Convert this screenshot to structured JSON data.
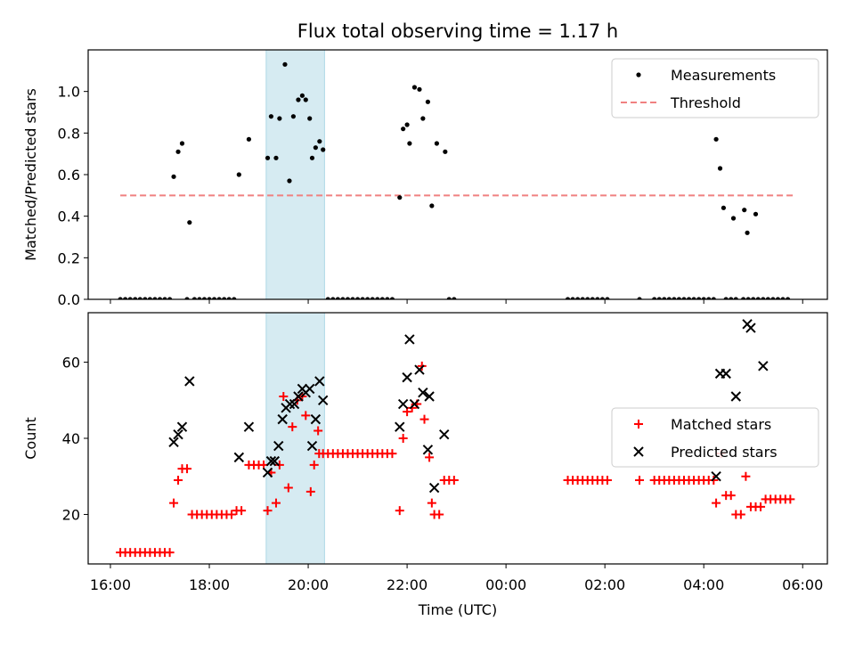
{
  "title": "Flux total observing time = 1.17 h",
  "colors": {
    "measure": "#000000",
    "threshold": "#f08080",
    "matched": "#ff0000",
    "predicted": "#000000",
    "shade": "#add8e6"
  },
  "chart_data": [
    {
      "type": "scatter",
      "ylabel": "Matched/Predicted stars",
      "xlim": [
        15.55,
        30.5
      ],
      "ylim": [
        0,
        1.2
      ],
      "yticks": [
        0.0,
        0.2,
        0.4,
        0.6,
        0.8,
        1.0
      ],
      "ytick_labels": [
        "0.0",
        "0.2",
        "0.4",
        "0.6",
        "0.8",
        "1.0"
      ],
      "shaded_span": [
        19.15,
        20.33
      ],
      "legend": {
        "position": "top-right",
        "entries": [
          "Measurements",
          "Threshold"
        ]
      },
      "threshold": {
        "name": "Threshold",
        "value": 0.5,
        "x": [
          16.2,
          29.8
        ]
      },
      "series": [
        {
          "name": "Measurements",
          "marker": "dot",
          "points": [
            [
              16.2,
              0
            ],
            [
              16.3,
              0
            ],
            [
              16.4,
              0
            ],
            [
              16.5,
              0
            ],
            [
              16.6,
              0
            ],
            [
              16.7,
              0
            ],
            [
              16.8,
              0
            ],
            [
              16.9,
              0
            ],
            [
              17.0,
              0
            ],
            [
              17.1,
              0
            ],
            [
              17.2,
              0
            ],
            [
              17.28,
              0.59
            ],
            [
              17.37,
              0.71
            ],
            [
              17.45,
              0.75
            ],
            [
              17.6,
              0.37
            ],
            [
              17.55,
              0
            ],
            [
              17.7,
              0
            ],
            [
              17.8,
              0
            ],
            [
              17.9,
              0
            ],
            [
              18.0,
              0
            ],
            [
              18.1,
              0
            ],
            [
              18.2,
              0
            ],
            [
              18.3,
              0
            ],
            [
              18.4,
              0
            ],
            [
              18.5,
              0
            ],
            [
              18.6,
              0.6
            ],
            [
              18.8,
              0.77
            ],
            [
              19.18,
              0.68
            ],
            [
              19.25,
              0.88
            ],
            [
              19.35,
              0.68
            ],
            [
              19.42,
              0.87
            ],
            [
              19.53,
              1.13
            ],
            [
              19.62,
              0.57
            ],
            [
              19.7,
              0.88
            ],
            [
              19.8,
              0.96
            ],
            [
              19.88,
              0.98
            ],
            [
              19.95,
              0.96
            ],
            [
              20.03,
              0.87
            ],
            [
              20.08,
              0.68
            ],
            [
              20.15,
              0.73
            ],
            [
              20.23,
              0.76
            ],
            [
              20.3,
              0.72
            ],
            [
              20.4,
              0
            ],
            [
              20.5,
              0
            ],
            [
              20.6,
              0
            ],
            [
              20.7,
              0
            ],
            [
              20.8,
              0
            ],
            [
              20.9,
              0
            ],
            [
              21.0,
              0
            ],
            [
              21.1,
              0
            ],
            [
              21.2,
              0
            ],
            [
              21.3,
              0
            ],
            [
              21.4,
              0
            ],
            [
              21.5,
              0
            ],
            [
              21.6,
              0
            ],
            [
              21.7,
              0
            ],
            [
              21.85,
              0.49
            ],
            [
              21.92,
              0.82
            ],
            [
              22.0,
              0.84
            ],
            [
              22.05,
              0.75
            ],
            [
              22.15,
              1.02
            ],
            [
              22.25,
              1.01
            ],
            [
              22.32,
              0.87
            ],
            [
              22.42,
              0.95
            ],
            [
              22.5,
              0.45
            ],
            [
              22.6,
              0.75
            ],
            [
              22.77,
              0.71
            ],
            [
              22.85,
              0
            ],
            [
              22.95,
              0
            ],
            [
              25.25,
              0
            ],
            [
              25.35,
              0
            ],
            [
              25.45,
              0
            ],
            [
              25.55,
              0
            ],
            [
              25.65,
              0
            ],
            [
              25.75,
              0
            ],
            [
              25.85,
              0
            ],
            [
              25.95,
              0
            ],
            [
              26.05,
              0
            ],
            [
              26.7,
              0
            ],
            [
              27.0,
              0
            ],
            [
              27.1,
              0
            ],
            [
              27.2,
              0
            ],
            [
              27.3,
              0
            ],
            [
              27.4,
              0
            ],
            [
              27.5,
              0
            ],
            [
              27.6,
              0
            ],
            [
              27.7,
              0
            ],
            [
              27.8,
              0
            ],
            [
              27.9,
              0
            ],
            [
              28.0,
              0
            ],
            [
              28.1,
              0
            ],
            [
              28.2,
              0
            ],
            [
              28.25,
              0.77
            ],
            [
              28.33,
              0.63
            ],
            [
              28.4,
              0.44
            ],
            [
              28.6,
              0.39
            ],
            [
              28.82,
              0.43
            ],
            [
              28.88,
              0.32
            ],
            [
              29.05,
              0.41
            ],
            [
              28.45,
              0
            ],
            [
              28.55,
              0
            ],
            [
              28.65,
              0
            ],
            [
              28.8,
              0
            ],
            [
              28.9,
              0
            ],
            [
              29.0,
              0
            ],
            [
              29.1,
              0
            ],
            [
              29.2,
              0
            ],
            [
              29.3,
              0
            ],
            [
              29.4,
              0
            ],
            [
              29.5,
              0
            ],
            [
              29.6,
              0
            ],
            [
              29.7,
              0
            ]
          ]
        }
      ]
    },
    {
      "type": "scatter",
      "ylabel": "Count",
      "xlabel": "Time (UTC)",
      "xlim": [
        15.55,
        30.5
      ],
      "ylim": [
        7,
        73
      ],
      "yticks": [
        20,
        40,
        60
      ],
      "ytick_labels": [
        "20",
        "40",
        "60"
      ],
      "xticks": [
        16,
        18,
        20,
        22,
        24,
        26,
        28,
        30
      ],
      "xtick_labels": [
        "16:00",
        "18:00",
        "20:00",
        "22:00",
        "00:00",
        "02:00",
        "04:00",
        "06:00"
      ],
      "shaded_span": [
        19.15,
        20.33
      ],
      "legend": {
        "position": "center-right",
        "entries": [
          "Matched stars",
          "Predicted stars"
        ]
      },
      "series": [
        {
          "name": "Matched stars",
          "marker": "plus",
          "points": [
            [
              16.2,
              10
            ],
            [
              16.3,
              10
            ],
            [
              16.4,
              10
            ],
            [
              16.5,
              10
            ],
            [
              16.6,
              10
            ],
            [
              16.7,
              10
            ],
            [
              16.8,
              10
            ],
            [
              16.9,
              10
            ],
            [
              17.0,
              10
            ],
            [
              17.1,
              10
            ],
            [
              17.2,
              10
            ],
            [
              17.28,
              23
            ],
            [
              17.37,
              29
            ],
            [
              17.45,
              32
            ],
            [
              17.55,
              32
            ],
            [
              17.65,
              20
            ],
            [
              17.75,
              20
            ],
            [
              17.85,
              20
            ],
            [
              17.95,
              20
            ],
            [
              18.05,
              20
            ],
            [
              18.15,
              20
            ],
            [
              18.25,
              20
            ],
            [
              18.35,
              20
            ],
            [
              18.45,
              20
            ],
            [
              18.55,
              21
            ],
            [
              18.65,
              21
            ],
            [
              18.8,
              33
            ],
            [
              18.9,
              33
            ],
            [
              19.0,
              33
            ],
            [
              19.1,
              33
            ],
            [
              19.18,
              21
            ],
            [
              19.25,
              31
            ],
            [
              19.35,
              23
            ],
            [
              19.42,
              33
            ],
            [
              19.5,
              51
            ],
            [
              19.6,
              27
            ],
            [
              19.68,
              43
            ],
            [
              19.78,
              50
            ],
            [
              19.88,
              51
            ],
            [
              19.95,
              46
            ],
            [
              20.05,
              26
            ],
            [
              20.12,
              33
            ],
            [
              20.2,
              42
            ],
            [
              20.22,
              36
            ],
            [
              20.3,
              36
            ],
            [
              20.4,
              36
            ],
            [
              20.5,
              36
            ],
            [
              20.6,
              36
            ],
            [
              20.7,
              36
            ],
            [
              20.8,
              36
            ],
            [
              20.9,
              36
            ],
            [
              21.0,
              36
            ],
            [
              21.1,
              36
            ],
            [
              21.2,
              36
            ],
            [
              21.3,
              36
            ],
            [
              21.4,
              36
            ],
            [
              21.5,
              36
            ],
            [
              21.6,
              36
            ],
            [
              21.7,
              36
            ],
            [
              21.85,
              21
            ],
            [
              21.92,
              40
            ],
            [
              22.0,
              47
            ],
            [
              22.1,
              48
            ],
            [
              22.2,
              49
            ],
            [
              22.3,
              59
            ],
            [
              22.35,
              45
            ],
            [
              22.45,
              35
            ],
            [
              22.5,
              23
            ],
            [
              22.55,
              20
            ],
            [
              22.65,
              20
            ],
            [
              22.75,
              29
            ],
            [
              22.85,
              29
            ],
            [
              22.95,
              29
            ],
            [
              25.25,
              29
            ],
            [
              25.35,
              29
            ],
            [
              25.45,
              29
            ],
            [
              25.55,
              29
            ],
            [
              25.65,
              29
            ],
            [
              25.75,
              29
            ],
            [
              25.85,
              29
            ],
            [
              25.95,
              29
            ],
            [
              26.05,
              29
            ],
            [
              26.7,
              29
            ],
            [
              27.0,
              29
            ],
            [
              27.1,
              29
            ],
            [
              27.2,
              29
            ],
            [
              27.3,
              29
            ],
            [
              27.4,
              29
            ],
            [
              27.5,
              29
            ],
            [
              27.6,
              29
            ],
            [
              27.7,
              29
            ],
            [
              27.8,
              29
            ],
            [
              27.9,
              29
            ],
            [
              28.0,
              29
            ],
            [
              28.1,
              29
            ],
            [
              28.2,
              29
            ],
            [
              28.25,
              23
            ],
            [
              28.35,
              36
            ],
            [
              28.45,
              25
            ],
            [
              28.55,
              25
            ],
            [
              28.65,
              20
            ],
            [
              28.75,
              20
            ],
            [
              28.85,
              30
            ],
            [
              28.95,
              22
            ],
            [
              29.05,
              22
            ],
            [
              29.15,
              22
            ],
            [
              29.25,
              24
            ],
            [
              29.35,
              24
            ],
            [
              29.45,
              24
            ],
            [
              29.55,
              24
            ],
            [
              29.65,
              24
            ],
            [
              29.75,
              24
            ]
          ]
        },
        {
          "name": "Predicted stars",
          "marker": "x",
          "points": [
            [
              17.28,
              39
            ],
            [
              17.37,
              41
            ],
            [
              17.45,
              43
            ],
            [
              17.6,
              55
            ],
            [
              18.6,
              35
            ],
            [
              18.8,
              43
            ],
            [
              19.18,
              31
            ],
            [
              19.25,
              34
            ],
            [
              19.32,
              34
            ],
            [
              19.4,
              38
            ],
            [
              19.48,
              45
            ],
            [
              19.55,
              48
            ],
            [
              19.63,
              49
            ],
            [
              19.72,
              49
            ],
            [
              19.8,
              51
            ],
            [
              19.88,
              53
            ],
            [
              19.95,
              52
            ],
            [
              20.03,
              53
            ],
            [
              20.08,
              38
            ],
            [
              20.15,
              45
            ],
            [
              20.23,
              55
            ],
            [
              20.3,
              50
            ],
            [
              21.85,
              43
            ],
            [
              21.92,
              49
            ],
            [
              22.0,
              56
            ],
            [
              22.05,
              66
            ],
            [
              22.15,
              49
            ],
            [
              22.25,
              58
            ],
            [
              22.32,
              52
            ],
            [
              22.42,
              37
            ],
            [
              22.45,
              51
            ],
            [
              22.55,
              27
            ],
            [
              22.75,
              41
            ],
            [
              28.25,
              30
            ],
            [
              28.33,
              57
            ],
            [
              28.45,
              57
            ],
            [
              28.65,
              51
            ],
            [
              28.88,
              70
            ],
            [
              28.95,
              69
            ],
            [
              29.2,
              59
            ]
          ]
        }
      ]
    }
  ]
}
